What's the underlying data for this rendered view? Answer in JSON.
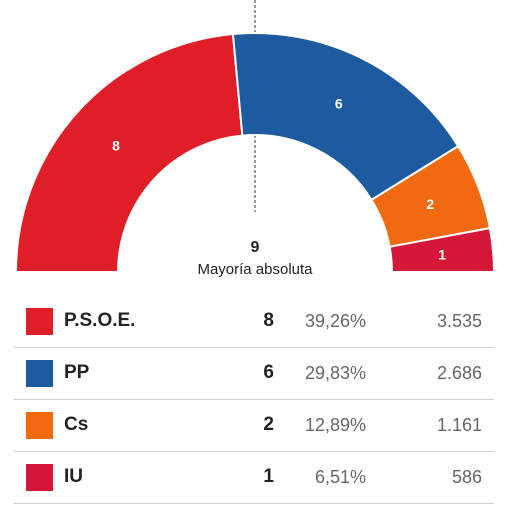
{
  "chart_data": {
    "type": "pie",
    "subtype": "parliament-semicircle",
    "majority": {
      "seats": "9",
      "label": "Mayoría absoluta"
    },
    "series": [
      {
        "party": "P.S.O.E.",
        "seats": 8,
        "percent": "39,26%",
        "votes": "3.535",
        "color": "#e01e27"
      },
      {
        "party": "PP",
        "seats": 6,
        "percent": "29,83%",
        "votes": "2.686",
        "color": "#1e5aa0"
      },
      {
        "party": "Cs",
        "seats": 2,
        "percent": "12,89%",
        "votes": "1.161",
        "color": "#f26a10"
      },
      {
        "party": "IU",
        "seats": 1,
        "percent": "6,51%",
        "votes": "586",
        "color": "#d41638"
      }
    ]
  }
}
